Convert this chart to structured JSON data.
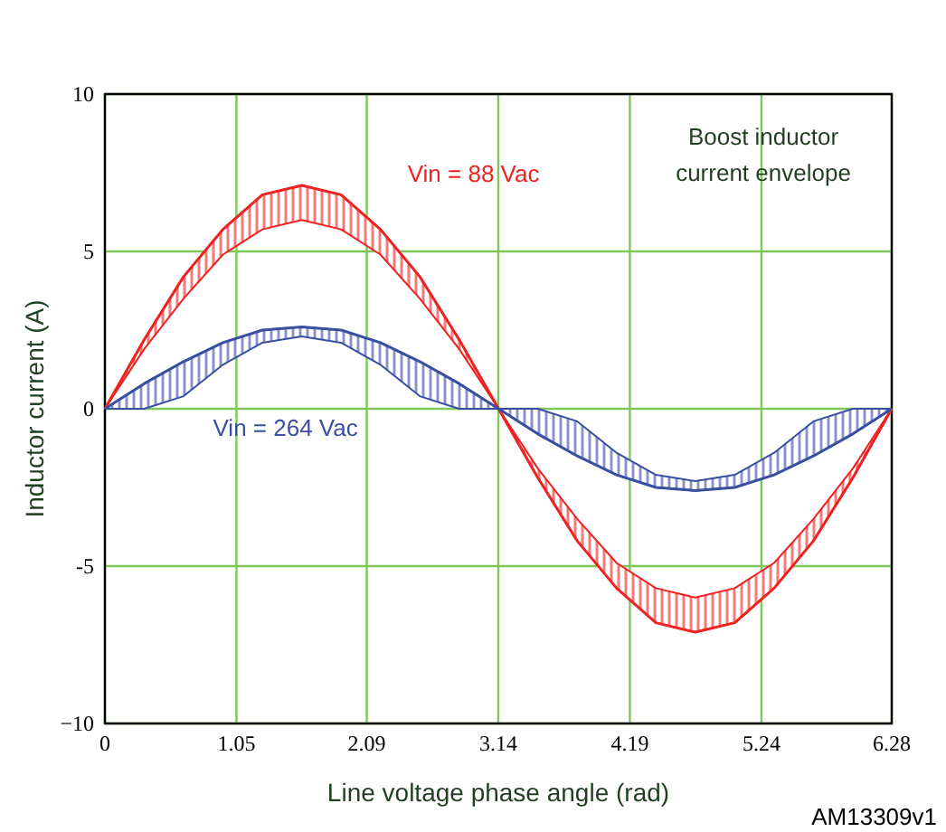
{
  "chart_data": {
    "type": "line",
    "xlabel": "Line voltage phase angle (rad)",
    "ylabel": "Inductor current (A)",
    "annotations": [
      "Boost inductor current envelope",
      "AM13309v1"
    ],
    "x": [
      0,
      0.314,
      0.628,
      0.942,
      1.257,
      1.571,
      1.885,
      2.199,
      2.513,
      2.827,
      3.142,
      3.456,
      3.77,
      4.084,
      4.398,
      4.712,
      5.027,
      5.341,
      5.655,
      5.969,
      6.28
    ],
    "series": [
      {
        "name": "Vin = 88 Vac",
        "color": "#ee2222",
        "values": [
          0,
          2.2,
          4.2,
          5.7,
          6.8,
          7.1,
          6.8,
          5.7,
          4.2,
          2.2,
          0,
          -2.2,
          -4.2,
          -5.7,
          -6.8,
          -7.1,
          -6.8,
          -5.7,
          -4.2,
          -2.2,
          0
        ],
        "upper": [
          0,
          2.2,
          4.2,
          5.7,
          6.8,
          7.1,
          6.8,
          5.7,
          4.2,
          2.2,
          0,
          -1.9,
          -3.5,
          -4.9,
          -5.7,
          -6.0,
          -5.7,
          -4.9,
          -3.5,
          -1.9,
          0
        ],
        "lower": [
          0,
          1.9,
          3.5,
          4.9,
          5.7,
          6.0,
          5.7,
          4.9,
          3.5,
          1.9,
          0,
          -2.2,
          -4.2,
          -5.7,
          -6.8,
          -7.1,
          -6.8,
          -5.7,
          -4.2,
          -2.2,
          0
        ]
      },
      {
        "name": "Vin = 264 Vac",
        "color": "#3a4fa0",
        "values": [
          0,
          0.8,
          1.5,
          2.1,
          2.5,
          2.6,
          2.5,
          2.1,
          1.5,
          0.8,
          0,
          -0.8,
          -1.5,
          -2.1,
          -2.5,
          -2.6,
          -2.5,
          -2.1,
          -1.5,
          -0.8,
          0
        ],
        "upper": [
          0,
          0.8,
          1.5,
          2.1,
          2.5,
          2.6,
          2.5,
          2.1,
          1.5,
          0.8,
          0,
          0,
          -0.4,
          -1.4,
          -2.1,
          -2.3,
          -2.1,
          -1.4,
          -0.4,
          0,
          0
        ],
        "lower": [
          0,
          0,
          0.4,
          1.4,
          2.1,
          2.3,
          2.1,
          1.4,
          0.4,
          0,
          0,
          -0.8,
          -1.5,
          -2.1,
          -2.5,
          -2.6,
          -2.5,
          -2.1,
          -1.5,
          -0.8,
          0
        ]
      }
    ],
    "xlim": [
      0,
      6.28
    ],
    "xticks": [
      0,
      1.05,
      2.09,
      3.14,
      4.19,
      5.24,
      6.28
    ],
    "ylim": [
      -10,
      10
    ],
    "yticks": [
      {
        "value": -10,
        "label": "−10"
      },
      -5,
      0,
      5,
      10
    ],
    "grid": true,
    "line_style": "solid"
  }
}
